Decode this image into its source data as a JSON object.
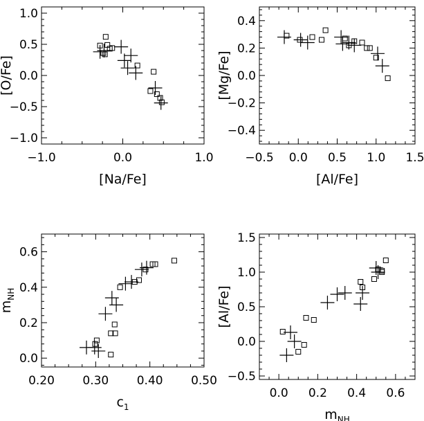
{
  "chart_data": [
    {
      "id": "p1",
      "type": "scatter",
      "xlabel": "[Na/Fe]",
      "ylabel": "[O/Fe]",
      "xlim": [
        -1.0,
        1.0
      ],
      "ylim": [
        -1.1,
        1.1
      ],
      "xticks": [
        -1.0,
        0.0,
        1.0
      ],
      "xtick_labels": [
        "−1.0",
        "0.0",
        "1.0"
      ],
      "yticks": [
        -1.0,
        -0.5,
        0.0,
        0.5,
        1.0
      ],
      "ytick_labels": [
        "−1.0",
        "−0.5",
        "0.0",
        "0.5",
        "1.0"
      ],
      "series": [
        {
          "marker": "square",
          "points": [
            [
              -0.28,
              0.48
            ],
            [
              -0.24,
              0.36
            ],
            [
              -0.21,
              0.62
            ],
            [
              -0.19,
              0.49
            ],
            [
              -0.16,
              0.43
            ],
            [
              -0.13,
              0.44
            ],
            [
              -0.22,
              0.34
            ],
            [
              0.18,
              0.16
            ],
            [
              0.38,
              0.06
            ],
            [
              0.34,
              -0.25
            ],
            [
              0.42,
              -0.3
            ],
            [
              0.46,
              -0.36
            ],
            [
              0.48,
              -0.43
            ]
          ]
        },
        {
          "marker": "plus",
          "points": [
            [
              -0.28,
              0.38
            ],
            [
              -0.23,
              0.4
            ],
            [
              -0.02,
              0.46
            ],
            [
              0.02,
              0.24
            ],
            [
              0.06,
              0.12
            ],
            [
              0.1,
              0.32
            ],
            [
              0.16,
              0.04
            ],
            [
              0.4,
              -0.2
            ],
            [
              0.47,
              -0.44
            ]
          ]
        }
      ]
    },
    {
      "id": "p2",
      "type": "scatter",
      "xlabel": "[Al/Fe]",
      "ylabel": "[Mg/Fe]",
      "xlim": [
        -0.5,
        1.5
      ],
      "ylim": [
        -0.5,
        0.5
      ],
      "xticks": [
        -0.5,
        0.0,
        0.5,
        1.0,
        1.5
      ],
      "xtick_labels": [
        "−0.5",
        "0.0",
        "0.5",
        "1.0",
        "1.5"
      ],
      "yticks": [
        -0.4,
        -0.2,
        0.0,
        0.2,
        0.4
      ],
      "ytick_labels": [
        "−0.4",
        "−0.2",
        "0.0",
        "0.2",
        "0.4"
      ],
      "series": [
        {
          "marker": "square",
          "points": [
            [
              -0.15,
              0.29
            ],
            [
              0.02,
              0.26
            ],
            [
              0.18,
              0.28
            ],
            [
              0.3,
              0.26
            ],
            [
              0.35,
              0.33
            ],
            [
              0.6,
              0.27
            ],
            [
              0.65,
              0.22
            ],
            [
              0.72,
              0.25
            ],
            [
              0.82,
              0.24
            ],
            [
              0.88,
              0.2
            ],
            [
              0.92,
              0.2
            ],
            [
              1.0,
              0.13
            ],
            [
              1.15,
              -0.02
            ]
          ]
        },
        {
          "marker": "plus",
          "points": [
            [
              -0.18,
              0.28
            ],
            [
              0.03,
              0.26
            ],
            [
              0.12,
              0.24
            ],
            [
              0.55,
              0.28
            ],
            [
              0.57,
              0.23
            ],
            [
              0.65,
              0.24
            ],
            [
              0.72,
              0.22
            ],
            [
              1.02,
              0.16
            ],
            [
              1.08,
              0.07
            ]
          ]
        }
      ]
    },
    {
      "id": "p3",
      "type": "scatter",
      "xlabel": "c",
      "xlabel_sub": "1",
      "ylabel": "m",
      "ylabel_sub": "NH",
      "xlim": [
        0.2,
        0.5
      ],
      "ylim": [
        -0.05,
        0.7
      ],
      "xticks": [
        0.2,
        0.3,
        0.4,
        0.5
      ],
      "xtick_labels": [
        "0.20",
        "0.30",
        "0.40",
        "0.50"
      ],
      "yticks": [
        0.0,
        0.2,
        0.4,
        0.6
      ],
      "ytick_labels": [
        "0.0",
        "0.2",
        "0.4",
        "0.6"
      ],
      "series": [
        {
          "marker": "square",
          "points": [
            [
              0.299,
              0.08
            ],
            [
              0.302,
              0.1
            ],
            [
              0.328,
              0.02
            ],
            [
              0.328,
              0.14
            ],
            [
              0.335,
              0.19
            ],
            [
              0.336,
              0.14
            ],
            [
              0.345,
              0.4
            ],
            [
              0.372,
              0.43
            ],
            [
              0.38,
              0.44
            ],
            [
              0.392,
              0.5
            ],
            [
              0.405,
              0.53
            ],
            [
              0.41,
              0.53
            ],
            [
              0.445,
              0.55
            ]
          ]
        },
        {
          "marker": "plus",
          "points": [
            [
              0.283,
              0.06
            ],
            [
              0.298,
              0.06
            ],
            [
              0.305,
              0.04
            ],
            [
              0.318,
              0.25
            ],
            [
              0.33,
              0.34
            ],
            [
              0.338,
              0.3
            ],
            [
              0.355,
              0.42
            ],
            [
              0.366,
              0.43
            ],
            [
              0.385,
              0.5
            ],
            [
              0.394,
              0.51
            ]
          ]
        }
      ]
    },
    {
      "id": "p4",
      "type": "scatter",
      "xlabel": "m",
      "xlabel_sub": "NH",
      "ylabel": "[Al/Fe]",
      "xlim": [
        -0.1,
        0.7
      ],
      "ylim": [
        -0.55,
        1.55
      ],
      "xticks": [
        0.0,
        0.2,
        0.4,
        0.6
      ],
      "xtick_labels": [
        "0.0",
        "0.2",
        "0.4",
        "0.6"
      ],
      "yticks": [
        -0.5,
        0.0,
        0.5,
        1.0,
        1.5
      ],
      "ytick_labels": [
        "−0.5",
        "0.0",
        "0.5",
        "1.0",
        "1.5"
      ],
      "series": [
        {
          "marker": "square",
          "points": [
            [
              0.02,
              0.14
            ],
            [
              0.1,
              -0.15
            ],
            [
              0.13,
              -0.05
            ],
            [
              0.14,
              0.34
            ],
            [
              0.18,
              0.31
            ],
            [
              0.42,
              0.86
            ],
            [
              0.43,
              0.78
            ],
            [
              0.49,
              0.9
            ],
            [
              0.51,
              1.04
            ],
            [
              0.53,
              1.02
            ],
            [
              0.55,
              1.17
            ],
            [
              0.53,
              1.0
            ]
          ]
        },
        {
          "marker": "plus",
          "points": [
            [
              0.04,
              -0.2
            ],
            [
              0.06,
              0.13
            ],
            [
              0.08,
              0.0
            ],
            [
              0.25,
              0.56
            ],
            [
              0.3,
              0.68
            ],
            [
              0.34,
              0.7
            ],
            [
              0.42,
              0.54
            ],
            [
              0.43,
              0.7
            ],
            [
              0.5,
              1.06
            ],
            [
              0.51,
              1.0
            ]
          ]
        }
      ]
    }
  ]
}
